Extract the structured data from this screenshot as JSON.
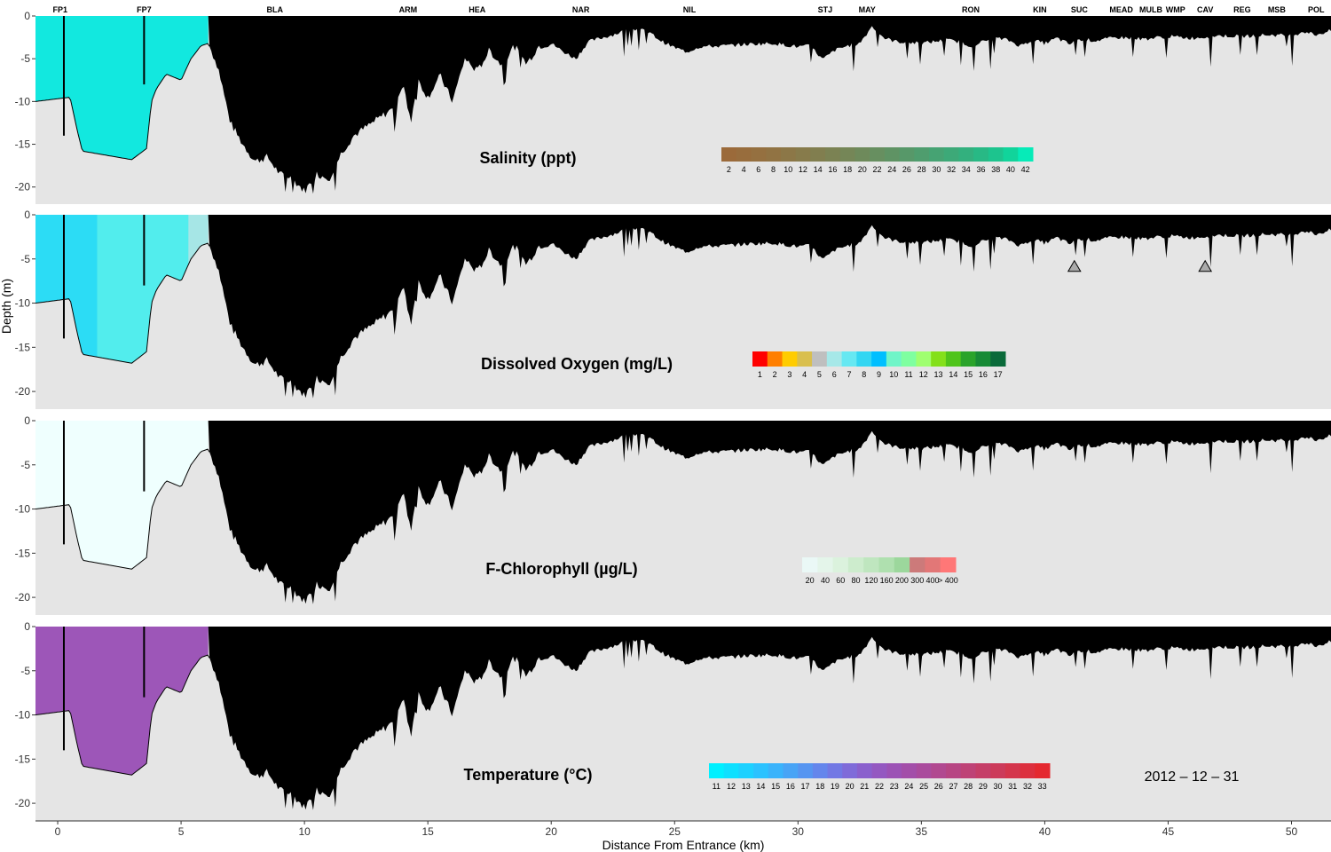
{
  "chart_data": {
    "type": "area",
    "date": "2012 – 12 – 31",
    "xlabel": "Distance From Entrance (km)",
    "ylabel": "Depth (m)",
    "xlim": [
      -0.9,
      51.6
    ],
    "ylim": [
      -22,
      0
    ],
    "x_ticks": [
      0,
      5,
      10,
      15,
      20,
      25,
      30,
      35,
      40,
      45,
      50
    ],
    "y_ticks": [
      0,
      -5,
      -10,
      -15,
      -20
    ],
    "background_color": "#e5e5e5",
    "bottom_color": "#000000",
    "stations": [
      {
        "name": "FP1",
        "x": 0.1
      },
      {
        "name": "FP7",
        "x": 3.5
      },
      {
        "name": "BLA",
        "x": 8.8
      },
      {
        "name": "ARM",
        "x": 14.2
      },
      {
        "name": "HEA",
        "x": 17.0
      },
      {
        "name": "NAR",
        "x": 21.2
      },
      {
        "name": "NIL",
        "x": 25.6
      },
      {
        "name": "STJ",
        "x": 31.1
      },
      {
        "name": "MAY",
        "x": 32.8
      },
      {
        "name": "RON",
        "x": 37.0
      },
      {
        "name": "KIN",
        "x": 39.8
      },
      {
        "name": "SUC",
        "x": 41.4
      },
      {
        "name": "MEAD",
        "x": 43.1
      },
      {
        "name": "MULB",
        "x": 44.3
      },
      {
        "name": "WMP",
        "x": 45.3
      },
      {
        "name": "CAV",
        "x": 46.5
      },
      {
        "name": "REG",
        "x": 48.0
      },
      {
        "name": "MSB",
        "x": 49.4
      },
      {
        "name": "POL",
        "x": 51.0
      }
    ],
    "bathymetry": {
      "x": [
        -0.9,
        0.5,
        0.8,
        1.0,
        2.0,
        3.0,
        3.6,
        3.8,
        4.0,
        4.4,
        5.0,
        5.4,
        5.8,
        6.1,
        6.5,
        7.0,
        7.5,
        8.0,
        8.5,
        9.0,
        9.5,
        10.0,
        10.5,
        11.0,
        11.5,
        12.0,
        12.5,
        13.0,
        13.5,
        14.0,
        14.3,
        14.6,
        15.0,
        15.5,
        16.0,
        16.5,
        17.0,
        17.5,
        18.0,
        18.5,
        19.0,
        19.5,
        20.0,
        20.5,
        21.0,
        21.5,
        22.0,
        22.5,
        23.0,
        23.5,
        24.0,
        24.5,
        25.0,
        25.5,
        26.0,
        27.0,
        28.0,
        29.0,
        30.0,
        30.5,
        31.0,
        31.5,
        32.0,
        32.5,
        33.0,
        33.5,
        34.0,
        35.0,
        36.0,
        36.5,
        37.0,
        37.5,
        38.0,
        38.5,
        39.0,
        39.5,
        40.0,
        40.5,
        41.0,
        41.5,
        42.0,
        43.0,
        44.0,
        45.0,
        46.0,
        47.0,
        48.0,
        49.0,
        50.0,
        50.5,
        51.0,
        51.6
      ],
      "depth": [
        -10,
        -9.5,
        -13.5,
        -15.8,
        -16.3,
        -16.8,
        -15.5,
        -10,
        -8.5,
        -6.8,
        -7.5,
        -5,
        -3.5,
        -3.2,
        -6,
        -12.5,
        -15,
        -17,
        -16.5,
        -18.5,
        -19,
        -20.5,
        -18.5,
        -19,
        -16,
        -14,
        -13,
        -12,
        -11,
        -8,
        -12.5,
        -7.5,
        -9.5,
        -7,
        -10,
        -5,
        -6.5,
        -4,
        -5.8,
        -3.5,
        -5.6,
        -3.5,
        -3.2,
        -4.2,
        -5,
        -3,
        -2.6,
        -2.2,
        -1.7,
        -1.5,
        -2,
        -3,
        -3.7,
        -4.2,
        -3.6,
        -3.5,
        -3.3,
        -3.2,
        -3.6,
        -3.5,
        -5.1,
        -4,
        -3.5,
        -3.2,
        -1.2,
        -2.6,
        -3,
        -3.2,
        -2.8,
        -3,
        -3.5,
        -3,
        -2.6,
        -2.8,
        -3.5,
        -2.8,
        -3.2,
        -2.6,
        -3.3,
        -2.7,
        -2.9,
        -2.5,
        -2.7,
        -2.4,
        -2.6,
        -2.3,
        -2.4,
        -2.2,
        -2.3,
        -1.8,
        -2.2,
        -1.7
      ]
    },
    "panels": [
      {
        "title": "Salinity (ppt)",
        "legend_labels": [
          "2",
          "4",
          "6",
          "8",
          "10",
          "12",
          "14",
          "16",
          "18",
          "20",
          "22",
          "24",
          "26",
          "28",
          "30",
          "32",
          "34",
          "36",
          "38",
          "40",
          "42"
        ],
        "legend_colors": [
          "#9b6a3a",
          "#986d3d",
          "#957040",
          "#917343",
          "#8c7747",
          "#877b4b",
          "#817e4f",
          "#7b8253",
          "#758657",
          "#6e8a5b",
          "#678f60",
          "#5f9364",
          "#579869",
          "#4f9d6e",
          "#46a373",
          "#3da978",
          "#33b07e",
          "#28b985",
          "#1dc48e",
          "#11d49b",
          "#06ebb8"
        ],
        "regions": [
          {
            "x_from": -0.9,
            "x_to": 6.1,
            "color": "#12e8df",
            "value": "35"
          }
        ]
      },
      {
        "title": "Dissolved Oxygen (mg/L)",
        "legend_labels": [
          "1",
          "2",
          "3",
          "4",
          "5",
          "6",
          "7",
          "8",
          "9",
          "10",
          "11",
          "12",
          "13",
          "14",
          "15",
          "16",
          "17"
        ],
        "legend_colors": [
          "#ff0000",
          "#ff7f00",
          "#ffcc00",
          "#d9bf4e",
          "#bfbfbf",
          "#a6e8e8",
          "#66e8f2",
          "#33d6f2",
          "#00bfff",
          "#70f5c8",
          "#7fffa0",
          "#a0ff70",
          "#84e01a",
          "#50c41a",
          "#2aa32a",
          "#178a35",
          "#0a6a3a"
        ],
        "regions": [
          {
            "x_from": -0.9,
            "x_to": 1.6,
            "color": "#2cdcf5",
            "value": "8"
          },
          {
            "x_from": 1.6,
            "x_to": 5.3,
            "color": "#52eded",
            "value": "7"
          },
          {
            "x_from": 5.3,
            "x_to": 6.1,
            "color": "#a6e6e6",
            "value": "6"
          }
        ]
      },
      {
        "title": "F-Chlorophyll (µg/L)",
        "legend_labels": [
          "20",
          "40",
          "60",
          "80",
          "120",
          "160",
          "200",
          "300",
          "400",
          "> 400"
        ],
        "legend_colors": [
          "#eaf8f6",
          "#e4f5ea",
          "#dbf2dd",
          "#cdeccd",
          "#bfe6bf",
          "#afe0af",
          "#9cd79c",
          "#cc7a7a",
          "#e27777",
          "#ff7777"
        ],
        "regions": [
          {
            "x_from": -0.9,
            "x_to": 6.1,
            "color": "#effffe",
            "value": "20"
          }
        ]
      },
      {
        "title": "Temperature (°C)",
        "legend_labels": [
          "11",
          "12",
          "13",
          "14",
          "15",
          "16",
          "17",
          "18",
          "19",
          "20",
          "21",
          "22",
          "23",
          "24",
          "25",
          "26",
          "27",
          "28",
          "29",
          "30",
          "31",
          "32",
          "33"
        ],
        "legend_colors": [
          "#00f0ff",
          "#0ee0ff",
          "#1dd1ff",
          "#2bc2ff",
          "#3ab3fb",
          "#48a4f6",
          "#5695f1",
          "#6486ec",
          "#7278e4",
          "#7f6bd9",
          "#8a60cd",
          "#9458c1",
          "#9c52b5",
          "#a34ea9",
          "#aa4b9d",
          "#b14890",
          "#b74583",
          "#be4276",
          "#c53e68",
          "#cc3a5a",
          "#d4354c",
          "#dc2f3e",
          "#e4282f"
        ],
        "regions": [
          {
            "x_from": -0.9,
            "x_to": 6.1,
            "color": "#9d56b8",
            "value": "24"
          }
        ]
      }
    ]
  }
}
